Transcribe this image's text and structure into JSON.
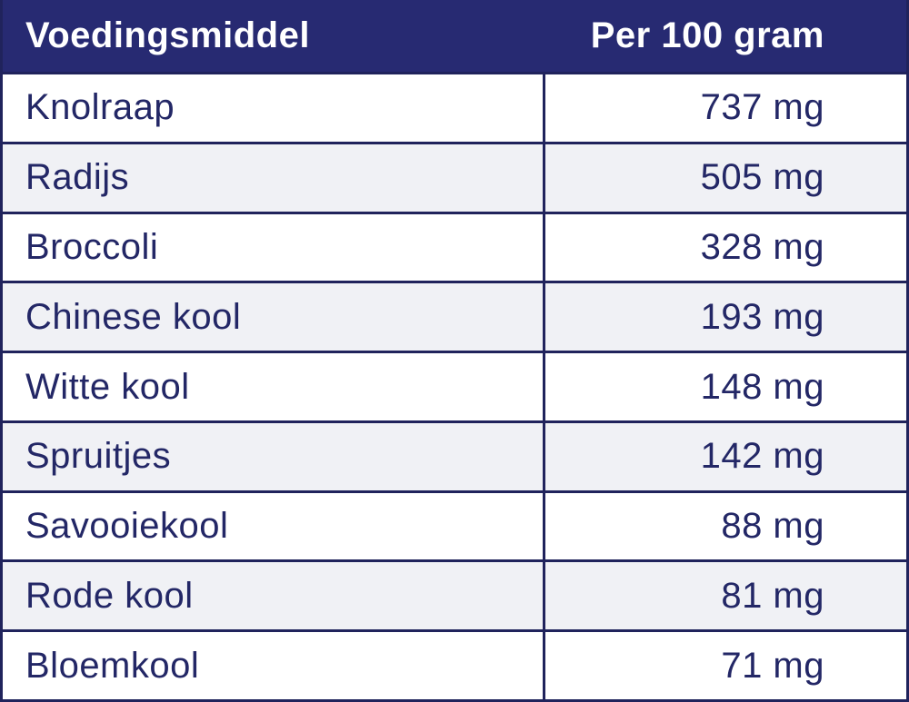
{
  "header": {
    "food_column_label": "Voedingsmiddel",
    "amount_column_label": "Per 100 gram"
  },
  "rows": [
    {
      "food": "Knolraap",
      "amount": "737 mg"
    },
    {
      "food": "Radijs",
      "amount": "505 mg"
    },
    {
      "food": "Broccoli",
      "amount": "328 mg"
    },
    {
      "food": "Chinese kool",
      "amount": "193 mg"
    },
    {
      "food": "Witte kool",
      "amount": "148 mg"
    },
    {
      "food": "Spruitjes",
      "amount": "142 mg"
    },
    {
      "food": "Savooiekool",
      "amount": "88 mg"
    },
    {
      "food": "Rode kool",
      "amount": "81 mg"
    },
    {
      "food": "Bloemkool",
      "amount": "71 mg"
    }
  ],
  "colors": {
    "header_bg": "#272a72",
    "border": "#20235c",
    "text": "#232766",
    "header_text": "#ffffff",
    "row_bg": "#ffffff",
    "row_alt_bg": "#f0f1f5"
  },
  "chart_data": {
    "type": "table",
    "title": "",
    "columns": [
      "Voedingsmiddel",
      "Per 100 gram"
    ],
    "unit": "mg",
    "categories": [
      "Knolraap",
      "Radijs",
      "Broccoli",
      "Chinese kool",
      "Witte kool",
      "Spruitjes",
      "Savooiekool",
      "Rode kool",
      "Bloemkool"
    ],
    "values": [
      737,
      505,
      328,
      193,
      148,
      142,
      88,
      81,
      71
    ],
    "rows": [
      [
        "Knolraap",
        "737 mg"
      ],
      [
        "Radijs",
        "505 mg"
      ],
      [
        "Broccoli",
        "328 mg"
      ],
      [
        "Chinese kool",
        "193 mg"
      ],
      [
        "Witte kool",
        "148 mg"
      ],
      [
        "Spruitjes",
        "142 mg"
      ],
      [
        "Savooiekool",
        "88 mg"
      ],
      [
        "Rode kool",
        "81 mg"
      ],
      [
        "Bloemkool",
        "71 mg"
      ]
    ],
    "layout": {
      "header_style": "dark navy bar, white bold text",
      "row_striping": "white / light gray alternating starting with white",
      "value_alignment": "right"
    }
  }
}
